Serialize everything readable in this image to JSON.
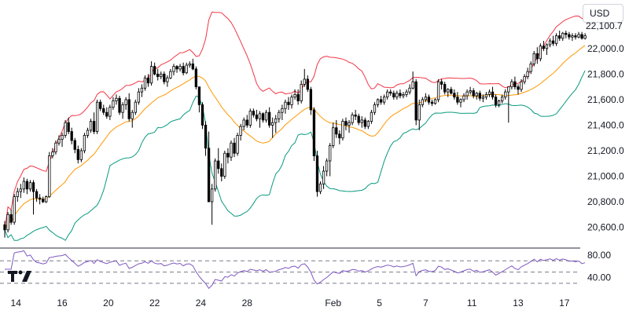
{
  "currency": {
    "selected": "USD"
  },
  "last_price_label": "22,100.7",
  "logo_icon": "tradingview-logo-icon",
  "colors": {
    "up_candle": "#ffffff",
    "down_candle": "#000000",
    "candle_border": "#000000",
    "bb_upper": "#f23645",
    "bb_middle": "#ff9800",
    "bb_lower": "#089981",
    "rsi_line": "#7e57c2",
    "rsi_band": "#7e57c2"
  },
  "chart_data": [
    {
      "type": "candlestick",
      "title": "",
      "indicators": [
        "Bollinger Bands (upper, basis, lower)"
      ],
      "xlabel": "",
      "ylabel": "",
      "ylim": [
        20450,
        22380
      ],
      "y_ticks": [
        "22,000.0",
        "21,800.0",
        "21,600.0",
        "21,400.0",
        "21,200.0",
        "21,000.0",
        "20,800.0",
        "20,600.0"
      ],
      "y_tick_values": [
        22000,
        21800,
        21600,
        21400,
        21200,
        21000,
        20800,
        20600
      ],
      "x_ticks": [
        "14",
        "16",
        "20",
        "22",
        "24",
        "28",
        "Feb",
        "5",
        "7",
        "11",
        "13",
        "17"
      ],
      "x_tick_index": [
        3.5,
        18,
        32.5,
        47,
        61.5,
        76,
        103,
        117.5,
        132,
        146.5,
        161,
        175.5
      ],
      "grid": false,
      "last_value": 22100.7,
      "ohlc_hourly_approx": [
        [
          20620,
          20650,
          20520,
          20580
        ],
        [
          20580,
          20720,
          20560,
          20700
        ],
        [
          20700,
          20740,
          20620,
          20640
        ],
        [
          20640,
          20860,
          20620,
          20840
        ],
        [
          20840,
          20910,
          20800,
          20880
        ],
        [
          20880,
          20940,
          20830,
          20900
        ],
        [
          20900,
          20990,
          20870,
          20960
        ],
        [
          20960,
          20980,
          20860,
          20900
        ],
        [
          20900,
          20970,
          20880,
          20950
        ],
        [
          20950,
          20970,
          20700,
          20880
        ],
        [
          20880,
          20900,
          20800,
          20830
        ],
        [
          20830,
          20860,
          20780,
          20820
        ],
        [
          20820,
          20840,
          20790,
          20800
        ],
        [
          20800,
          20850,
          20790,
          20840
        ],
        [
          20840,
          21190,
          20830,
          21160
        ],
        [
          21160,
          21220,
          21140,
          21190
        ],
        [
          21190,
          21280,
          21170,
          21260
        ],
        [
          21260,
          21320,
          21240,
          21290
        ],
        [
          21290,
          21340,
          21230,
          21320
        ],
        [
          21320,
          21440,
          21300,
          21420
        ],
        [
          21420,
          21460,
          21330,
          21350
        ],
        [
          21350,
          21380,
          21250,
          21280
        ],
        [
          21280,
          21300,
          21180,
          21210
        ],
        [
          21210,
          21240,
          21100,
          21130
        ],
        [
          21130,
          21220,
          21110,
          21200
        ],
        [
          21200,
          21340,
          21180,
          21320
        ],
        [
          21320,
          21380,
          21300,
          21360
        ],
        [
          21360,
          21450,
          21340,
          21430
        ],
        [
          21430,
          21500,
          21330,
          21350
        ],
        [
          21350,
          21600,
          21330,
          21580
        ],
        [
          21580,
          21600,
          21510,
          21530
        ],
        [
          21530,
          21560,
          21480,
          21500
        ],
        [
          21500,
          21540,
          21450,
          21470
        ],
        [
          21470,
          21560,
          21440,
          21540
        ],
        [
          21540,
          21620,
          21520,
          21590
        ],
        [
          21590,
          21640,
          21560,
          21610
        ],
        [
          21610,
          21630,
          21480,
          21500
        ],
        [
          21500,
          21580,
          21450,
          21560
        ],
        [
          21560,
          21620,
          21520,
          21600
        ],
        [
          21600,
          21650,
          21430,
          21450
        ],
        [
          21450,
          21520,
          21380,
          21500
        ],
        [
          21500,
          21600,
          21480,
          21580
        ],
        [
          21580,
          21690,
          21560,
          21660
        ],
        [
          21660,
          21720,
          21620,
          21690
        ],
        [
          21690,
          21790,
          21670,
          21770
        ],
        [
          21770,
          21800,
          21700,
          21730
        ],
        [
          21730,
          21900,
          21710,
          21860
        ],
        [
          21860,
          21890,
          21790,
          21800
        ],
        [
          21800,
          21840,
          21750,
          21780
        ],
        [
          21780,
          21820,
          21760,
          21800
        ],
        [
          21800,
          21820,
          21720,
          21740
        ],
        [
          21740,
          21790,
          21700,
          21770
        ],
        [
          21770,
          21840,
          21760,
          21820
        ],
        [
          21820,
          21880,
          21790,
          21860
        ],
        [
          21860,
          21870,
          21810,
          21840
        ],
        [
          21840,
          21880,
          21820,
          21860
        ],
        [
          21860,
          21890,
          21790,
          21810
        ],
        [
          21810,
          21890,
          21800,
          21870
        ],
        [
          21870,
          21900,
          21850,
          21880
        ],
        [
          21880,
          21920,
          21830,
          21840
        ],
        [
          21840,
          21860,
          21680,
          21700
        ],
        [
          21700,
          21620,
          21500,
          21560
        ],
        [
          21560,
          21580,
          21370,
          21400
        ],
        [
          21400,
          21430,
          21160,
          21220
        ],
        [
          21220,
          21350,
          20920,
          20800
        ],
        [
          20800,
          20940,
          20620,
          20900
        ],
        [
          20900,
          21140,
          20880,
          21120
        ],
        [
          21120,
          21220,
          21020,
          21060
        ],
        [
          21060,
          21100,
          20960,
          21000
        ],
        [
          21000,
          21200,
          20980,
          21180
        ],
        [
          21180,
          21220,
          21100,
          21150
        ],
        [
          21150,
          21280,
          21120,
          21260
        ],
        [
          21260,
          21300,
          21150,
          21180
        ],
        [
          21180,
          21340,
          21160,
          21320
        ],
        [
          21320,
          21410,
          21280,
          21390
        ],
        [
          21390,
          21460,
          21360,
          21440
        ],
        [
          21440,
          21480,
          21380,
          21400
        ],
        [
          21400,
          21530,
          21380,
          21510
        ],
        [
          21510,
          21530,
          21460,
          21480
        ],
        [
          21480,
          21520,
          21430,
          21450
        ],
        [
          21450,
          21510,
          21380,
          21490
        ],
        [
          21490,
          21500,
          21420,
          21440
        ],
        [
          21440,
          21520,
          21420,
          21500
        ],
        [
          21500,
          21540,
          21380,
          21400
        ],
        [
          21400,
          21460,
          21300,
          21420
        ],
        [
          21420,
          21480,
          21340,
          21450
        ],
        [
          21450,
          21520,
          21420,
          21500
        ],
        [
          21500,
          21560,
          21440,
          21530
        ],
        [
          21530,
          21600,
          21490,
          21580
        ],
        [
          21580,
          21620,
          21520,
          21560
        ],
        [
          21560,
          21640,
          21530,
          21620
        ],
        [
          21620,
          21680,
          21600,
          21640
        ],
        [
          21640,
          21680,
          21560,
          21590
        ],
        [
          21590,
          21750,
          21570,
          21720
        ],
        [
          21720,
          21840,
          21700,
          21760
        ],
        [
          21760,
          21790,
          21660,
          21680
        ],
        [
          21680,
          21700,
          21480,
          21520
        ],
        [
          21520,
          21540,
          21120,
          21160
        ],
        [
          21160,
          21200,
          20840,
          20880
        ],
        [
          20880,
          20960,
          20860,
          20940
        ],
        [
          20940,
          21080,
          20900,
          21040
        ],
        [
          21040,
          21140,
          21000,
          21120
        ],
        [
          21120,
          21260,
          21000,
          21240
        ],
        [
          21240,
          21420,
          21220,
          21380
        ],
        [
          21380,
          21440,
          21300,
          21330
        ],
        [
          21330,
          21360,
          21250,
          21300
        ],
        [
          21300,
          21450,
          21280,
          21430
        ],
        [
          21430,
          21460,
          21360,
          21400
        ],
        [
          21400,
          21440,
          21340,
          21420
        ],
        [
          21420,
          21500,
          21400,
          21480
        ],
        [
          21480,
          21520,
          21440,
          21470
        ],
        [
          21470,
          21490,
          21400,
          21420
        ],
        [
          21420,
          21470,
          21380,
          21440
        ],
        [
          21440,
          21460,
          21370,
          21390
        ],
        [
          21390,
          21440,
          21370,
          21430
        ],
        [
          21430,
          21520,
          21410,
          21500
        ],
        [
          21500,
          21580,
          21480,
          21560
        ],
        [
          21560,
          21610,
          21540,
          21600
        ],
        [
          21600,
          21630,
          21560,
          21580
        ],
        [
          21580,
          21640,
          21560,
          21620
        ],
        [
          21620,
          21680,
          21600,
          21660
        ],
        [
          21660,
          21680,
          21630,
          21650
        ],
        [
          21650,
          21670,
          21600,
          21620
        ],
        [
          21620,
          21670,
          21600,
          21650
        ],
        [
          21650,
          21680,
          21610,
          21630
        ],
        [
          21630,
          21660,
          21610,
          21640
        ],
        [
          21640,
          21680,
          21620,
          21660
        ],
        [
          21660,
          21720,
          21640,
          21690
        ],
        [
          21690,
          21820,
          21680,
          21740
        ],
        [
          21740,
          21760,
          21400,
          21440
        ],
        [
          21440,
          21600,
          21360,
          21560
        ],
        [
          21560,
          21620,
          21540,
          21600
        ],
        [
          21600,
          21650,
          21580,
          21620
        ],
        [
          21620,
          21640,
          21560,
          21580
        ],
        [
          21580,
          21600,
          21550,
          21570
        ],
        [
          21570,
          21610,
          21560,
          21600
        ],
        [
          21600,
          21760,
          21580,
          21740
        ],
        [
          21740,
          21760,
          21680,
          21720
        ],
        [
          21720,
          21740,
          21640,
          21660
        ],
        [
          21660,
          21690,
          21620,
          21680
        ],
        [
          21680,
          21700,
          21640,
          21650
        ],
        [
          21650,
          21680,
          21600,
          21620
        ],
        [
          21620,
          21660,
          21560,
          21580
        ],
        [
          21580,
          21610,
          21540,
          21600
        ],
        [
          21600,
          21650,
          21580,
          21630
        ],
        [
          21630,
          21680,
          21600,
          21660
        ],
        [
          21660,
          21700,
          21640,
          21670
        ],
        [
          21670,
          21690,
          21610,
          21630
        ],
        [
          21630,
          21660,
          21600,
          21650
        ],
        [
          21650,
          21670,
          21590,
          21610
        ],
        [
          21610,
          21640,
          21580,
          21620
        ],
        [
          21620,
          21660,
          21600,
          21640
        ],
        [
          21640,
          21680,
          21620,
          21660
        ],
        [
          21660,
          21700,
          21600,
          21620
        ],
        [
          21620,
          21640,
          21540,
          21560
        ],
        [
          21560,
          21600,
          21540,
          21590
        ],
        [
          21590,
          21640,
          21570,
          21620
        ],
        [
          21620,
          21680,
          21600,
          21660
        ],
        [
          21660,
          21700,
          21420,
          21700
        ],
        [
          21700,
          21760,
          21680,
          21740
        ],
        [
          21740,
          21780,
          21680,
          21700
        ],
        [
          21700,
          21720,
          21640,
          21680
        ],
        [
          21680,
          21760,
          21660,
          21740
        ],
        [
          21740,
          21800,
          21720,
          21780
        ],
        [
          21780,
          21850,
          21760,
          21820
        ],
        [
          21820,
          21900,
          21800,
          21880
        ],
        [
          21880,
          21980,
          21860,
          21960
        ],
        [
          21960,
          22010,
          21880,
          21920
        ],
        [
          21920,
          22040,
          21900,
          22020
        ],
        [
          22020,
          22060,
          21980,
          22000
        ],
        [
          22000,
          22040,
          21950,
          22030
        ],
        [
          22030,
          22080,
          22010,
          22060
        ],
        [
          22060,
          22100,
          22020,
          22040
        ],
        [
          22040,
          22120,
          22020,
          22100
        ],
        [
          22100,
          22140,
          22060,
          22080
        ],
        [
          22080,
          22130,
          22060,
          22120
        ],
        [
          22120,
          22140,
          22080,
          22110
        ],
        [
          22110,
          22130,
          22070,
          22090
        ],
        [
          22090,
          22120,
          22060,
          22100
        ],
        [
          22100,
          22120,
          22070,
          22090
        ],
        [
          22090,
          22130,
          22080,
          22110
        ],
        [
          22110,
          22130,
          22070,
          22080
        ],
        [
          22080,
          22120,
          22070,
          22100
        ]
      ]
    },
    {
      "type": "line",
      "title": "",
      "indicators": [
        "RSI"
      ],
      "ylim": [
        20,
        90
      ],
      "y_ticks": [
        "80.00",
        "40.00"
      ],
      "y_tick_values": [
        80,
        40
      ],
      "bands": [
        70,
        50,
        30
      ],
      "grid": false
    }
  ]
}
